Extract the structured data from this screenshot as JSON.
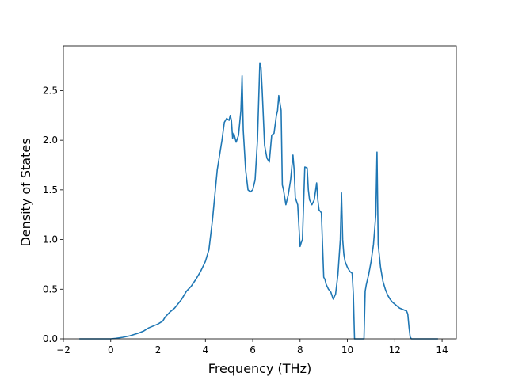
{
  "chart_data": {
    "type": "line",
    "title": "",
    "xlabel": "Frequency (THz)",
    "ylabel": "Density of States",
    "xlim": [
      -2,
      14.6
    ],
    "ylim": [
      0,
      2.95
    ],
    "grid": false,
    "legend": "none",
    "xticks": [
      -2,
      0,
      2,
      4,
      6,
      8,
      10,
      12,
      14
    ],
    "xtick_labels": [
      "−2",
      "0",
      "2",
      "4",
      "6",
      "8",
      "10",
      "12",
      "14"
    ],
    "yticks": [
      0.0,
      0.5,
      1.0,
      1.5,
      2.0,
      2.5
    ],
    "ytick_labels": [
      "0.0",
      "0.5",
      "1.0",
      "1.5",
      "2.0",
      "2.5"
    ],
    "series": [
      {
        "color": "#1f77b4",
        "x": [
          -1.3,
          -0.5,
          0.0,
          0.2,
          0.5,
          0.8,
          1.0,
          1.2,
          1.4,
          1.6,
          1.8,
          2.0,
          2.1,
          2.2,
          2.3,
          2.5,
          2.7,
          2.9,
          3.0,
          3.2,
          3.4,
          3.6,
          3.8,
          4.0,
          4.15,
          4.3,
          4.4,
          4.5,
          4.6,
          4.7,
          4.8,
          4.9,
          5.0,
          5.05,
          5.1,
          5.15,
          5.2,
          5.3,
          5.4,
          5.5,
          5.55,
          5.6,
          5.7,
          5.8,
          5.9,
          6.0,
          6.05,
          6.1,
          6.2,
          6.3,
          6.35,
          6.4,
          6.5,
          6.6,
          6.7,
          6.8,
          6.9,
          7.0,
          7.05,
          7.1,
          7.2,
          7.25,
          7.3,
          7.4,
          7.5,
          7.6,
          7.7,
          7.75,
          7.8,
          7.9,
          8.0,
          8.05,
          8.1,
          8.2,
          8.3,
          8.35,
          8.4,
          8.5,
          8.6,
          8.7,
          8.75,
          8.8,
          8.9,
          9.0,
          9.05,
          9.1,
          9.2,
          9.3,
          9.4,
          9.5,
          9.6,
          9.7,
          9.75,
          9.8,
          9.85,
          9.9,
          10.0,
          10.1,
          10.2,
          10.25,
          10.3,
          10.4,
          10.45,
          10.5,
          10.6,
          10.7,
          10.75,
          10.8,
          10.9,
          11.0,
          11.1,
          11.2,
          11.25,
          11.3,
          11.4,
          11.5,
          11.6,
          11.7,
          11.8,
          11.9,
          12.0,
          12.1,
          12.2,
          12.3,
          12.4,
          12.5,
          12.55,
          12.6,
          12.65,
          12.7,
          13.0,
          13.5,
          13.8
        ],
        "y": [
          0.0,
          0.0,
          0.0,
          0.005,
          0.015,
          0.03,
          0.045,
          0.06,
          0.08,
          0.11,
          0.13,
          0.15,
          0.165,
          0.18,
          0.22,
          0.27,
          0.31,
          0.37,
          0.4,
          0.48,
          0.53,
          0.6,
          0.68,
          0.78,
          0.9,
          1.2,
          1.45,
          1.7,
          1.85,
          2.0,
          2.18,
          2.22,
          2.2,
          2.25,
          2.2,
          2.02,
          2.07,
          1.98,
          2.05,
          2.3,
          2.65,
          2.1,
          1.7,
          1.5,
          1.48,
          1.5,
          1.55,
          1.6,
          2.0,
          2.78,
          2.73,
          2.5,
          1.95,
          1.82,
          1.78,
          2.05,
          2.07,
          2.25,
          2.3,
          2.45,
          2.3,
          1.55,
          1.5,
          1.35,
          1.45,
          1.6,
          1.85,
          1.7,
          1.42,
          1.35,
          0.93,
          0.97,
          1.0,
          1.73,
          1.72,
          1.5,
          1.4,
          1.35,
          1.4,
          1.57,
          1.4,
          1.3,
          1.27,
          0.62,
          0.6,
          0.55,
          0.5,
          0.47,
          0.4,
          0.45,
          0.65,
          1.0,
          1.47,
          1.0,
          0.85,
          0.78,
          0.72,
          0.68,
          0.66,
          0.45,
          0.0,
          0.0,
          0.0,
          0.0,
          0.0,
          0.0,
          0.48,
          0.55,
          0.65,
          0.78,
          0.95,
          1.25,
          1.88,
          0.95,
          0.72,
          0.58,
          0.5,
          0.44,
          0.4,
          0.37,
          0.35,
          0.33,
          0.31,
          0.3,
          0.29,
          0.28,
          0.25,
          0.12,
          0.02,
          0.0,
          0.0,
          0.0,
          0.0
        ]
      }
    ]
  }
}
